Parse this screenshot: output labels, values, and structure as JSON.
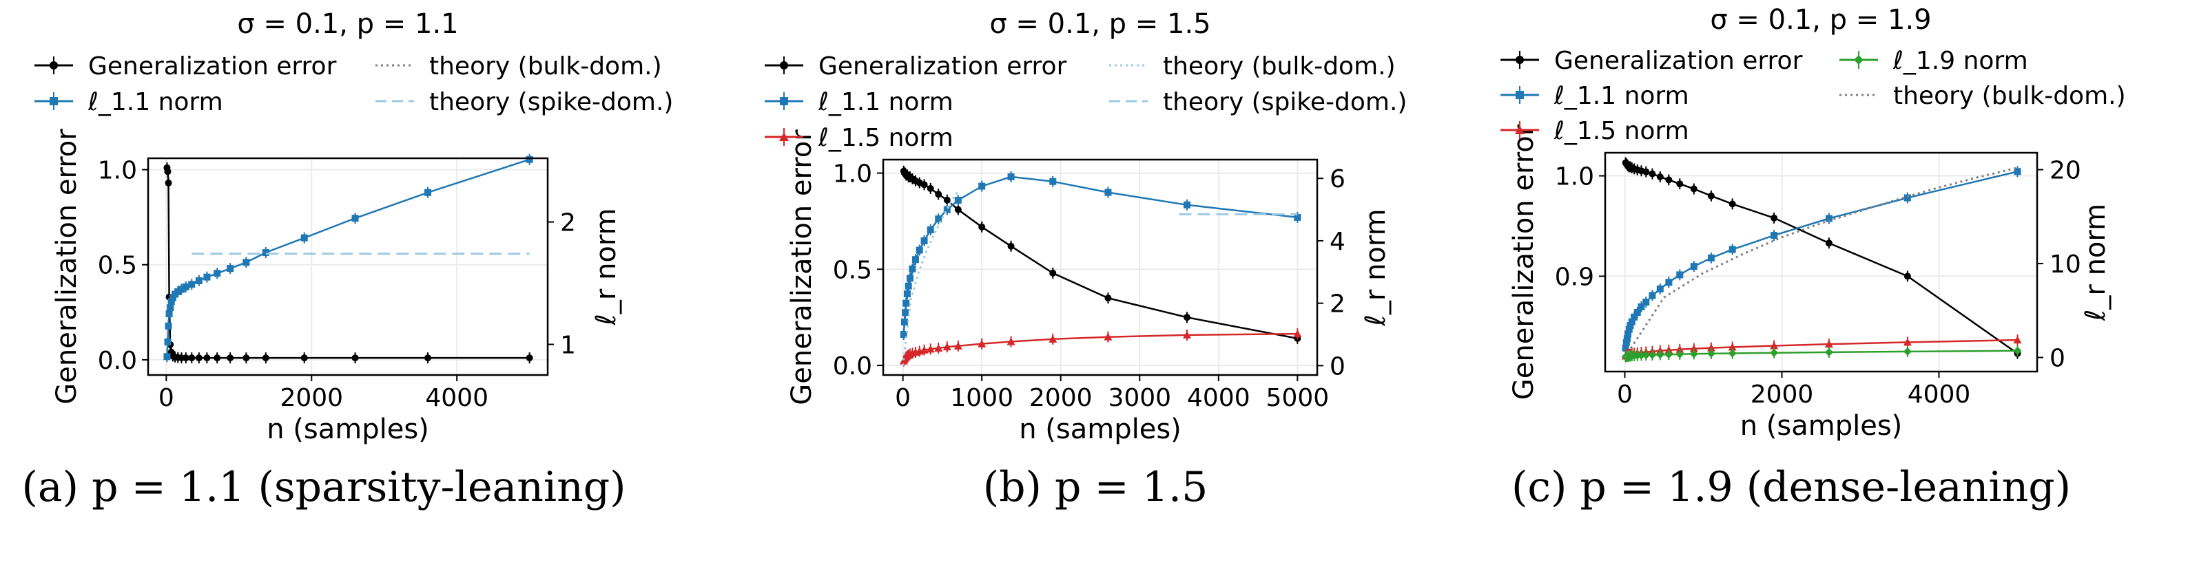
{
  "panels": [
    {
      "title": "σ = 0.1, p = 1.1",
      "caption": "(a) p = 1.1 (sparsity-leaning)",
      "xlabel": "n (samples)",
      "ylabel_left": "Generalization error",
      "ylabel_right": "ℓ_r norm",
      "xlim": [
        -250,
        5250
      ],
      "ylim_left": [
        -0.08,
        1.06
      ],
      "ylim_right": [
        0.75,
        2.52
      ],
      "xticks": [
        0,
        2000,
        4000
      ],
      "yticks_left": [
        0.0,
        0.5,
        1.0
      ],
      "yticks_right": [
        1,
        2
      ],
      "legend": [
        "Generalization error",
        "ℓ_1.1 norm",
        "theory (bulk-dom.)",
        "theory (spike-dom.)"
      ]
    },
    {
      "title": "σ = 0.1, p = 1.5",
      "caption": "(b) p = 1.5",
      "xlabel": "n (samples)",
      "ylabel_left": "Generalization error",
      "ylabel_right": "ℓ_r norm",
      "xlim": [
        -250,
        5250
      ],
      "ylim_left": [
        -0.05,
        1.07
      ],
      "ylim_right": [
        -0.3,
        6.6
      ],
      "xticks": [
        0,
        1000,
        2000,
        3000,
        4000,
        5000
      ],
      "yticks_left": [
        0.0,
        0.5,
        1.0
      ],
      "yticks_right": [
        0,
        2,
        4,
        6
      ],
      "legend": [
        "Generalization error",
        "ℓ_1.1 norm",
        "ℓ_1.5 norm",
        "theory (bulk-dom.)",
        "theory (spike-dom.)"
      ]
    },
    {
      "title": "σ = 0.1, p = 1.9",
      "caption": "(c) p = 1.9 (dense-leaning)",
      "xlabel": "n (samples)",
      "ylabel_left": "Generalization error",
      "ylabel_right": "ℓ_r norm",
      "xlim": [
        -250,
        5250
      ],
      "ylim_left": [
        0.805,
        1.023
      ],
      "ylim_right": [
        -1.5,
        21.8
      ],
      "xticks": [
        0,
        2000,
        4000
      ],
      "yticks_left": [
        0.9,
        1.0
      ],
      "yticks_right": [
        0,
        10,
        20
      ],
      "legend": [
        "Generalization error",
        "ℓ_1.1 norm",
        "ℓ_1.5 norm",
        "ℓ_1.9 norm",
        "theory (bulk-dom.)"
      ]
    }
  ],
  "chart_data": [
    {
      "type": "line",
      "title": "σ = 0.1, p = 1.1",
      "xlabel": "n (samples)",
      "ylabel": "Generalization error",
      "ylabel_right": "ℓ_r norm",
      "grid": true,
      "legend_position": "top",
      "series": [
        {
          "name": "Generalization error",
          "axis": "left",
          "color": "#000000",
          "marker": "circle",
          "x": [
            10,
            20,
            30,
            40,
            55,
            70,
            90,
            120,
            160,
            210,
            270,
            350,
            450,
            560,
            700,
            880,
            1100,
            1370,
            1900,
            2600,
            3600,
            5000
          ],
          "y": [
            1.01,
            0.99,
            0.93,
            0.33,
            0.08,
            0.04,
            0.02,
            0.015,
            0.012,
            0.01,
            0.01,
            0.01,
            0.01,
            0.01,
            0.01,
            0.01,
            0.01,
            0.01,
            0.01,
            0.01,
            0.01,
            0.01
          ]
        },
        {
          "name": "ℓ_1.1 norm",
          "axis": "right",
          "color": "#1f77b4",
          "marker": "square",
          "x": [
            10,
            20,
            30,
            40,
            55,
            70,
            90,
            120,
            160,
            210,
            270,
            350,
            450,
            560,
            700,
            880,
            1100,
            1370,
            1900,
            2600,
            3600,
            5000
          ],
          "y": [
            0.9,
            1.02,
            1.15,
            1.25,
            1.3,
            1.35,
            1.38,
            1.41,
            1.43,
            1.45,
            1.47,
            1.49,
            1.52,
            1.55,
            1.58,
            1.62,
            1.67,
            1.75,
            1.87,
            2.03,
            2.24,
            2.51
          ]
        },
        {
          "name": "theory (bulk-dom.)",
          "axis": "right",
          "color": "#808080",
          "style": "dotted",
          "x": [],
          "y": []
        },
        {
          "name": "theory (spike-dom.)",
          "axis": "right",
          "color": "#9ecae1",
          "style": "dashed",
          "x": [
            350,
            5000
          ],
          "y": [
            1.74,
            1.74
          ]
        }
      ]
    },
    {
      "type": "line",
      "title": "σ = 0.1, p = 1.5",
      "xlabel": "n (samples)",
      "ylabel": "Generalization error",
      "ylabel_right": "ℓ_r norm",
      "grid": true,
      "legend_position": "top",
      "series": [
        {
          "name": "Generalization error",
          "axis": "left",
          "color": "#000000",
          "marker": "circle",
          "x": [
            10,
            20,
            30,
            40,
            55,
            70,
            90,
            120,
            160,
            210,
            270,
            350,
            450,
            560,
            700,
            1000,
            1370,
            1900,
            2600,
            3600,
            5000
          ],
          "y": [
            1.01,
            1.0,
            1.0,
            0.99,
            0.99,
            0.98,
            0.98,
            0.97,
            0.96,
            0.95,
            0.94,
            0.92,
            0.89,
            0.86,
            0.81,
            0.72,
            0.62,
            0.48,
            0.35,
            0.25,
            0.14
          ]
        },
        {
          "name": "ℓ_1.1 norm",
          "axis": "right",
          "color": "#1f77b4",
          "marker": "square",
          "x": [
            10,
            20,
            30,
            40,
            55,
            70,
            90,
            120,
            160,
            210,
            270,
            350,
            450,
            560,
            700,
            1000,
            1370,
            1900,
            2600,
            3600,
            5000
          ],
          "y": [
            1.0,
            1.4,
            1.7,
            2.0,
            2.3,
            2.55,
            2.8,
            3.1,
            3.4,
            3.7,
            4.0,
            4.35,
            4.7,
            5.0,
            5.3,
            5.75,
            6.05,
            5.9,
            5.55,
            5.15,
            4.75
          ]
        },
        {
          "name": "ℓ_1.5 norm",
          "axis": "right",
          "color": "#d62728",
          "marker": "triangle",
          "x": [
            10,
            20,
            30,
            40,
            55,
            70,
            90,
            120,
            160,
            210,
            270,
            350,
            450,
            560,
            700,
            1000,
            1370,
            1900,
            2600,
            3600,
            5000
          ],
          "y": [
            0.15,
            0.2,
            0.24,
            0.28,
            0.31,
            0.34,
            0.37,
            0.4,
            0.43,
            0.46,
            0.5,
            0.53,
            0.56,
            0.6,
            0.63,
            0.7,
            0.77,
            0.85,
            0.92,
            0.98,
            1.02
          ]
        },
        {
          "name": "theory (bulk-dom.)",
          "axis": "right",
          "color": "#9ecae1",
          "style": "dotted",
          "x": [
            0,
            100,
            200,
            300,
            400,
            500,
            600,
            700
          ],
          "y": [
            0.0,
            2.12,
            3.0,
            3.67,
            4.24,
            4.74,
            5.2,
            5.61
          ]
        },
        {
          "name": "theory (spike-dom.)",
          "axis": "right",
          "color": "#9ecae1",
          "style": "dashed",
          "x": [
            3500,
            5000
          ],
          "y": [
            4.85,
            4.85
          ]
        }
      ]
    },
    {
      "type": "line",
      "title": "σ = 0.1, p = 1.9",
      "xlabel": "n (samples)",
      "ylabel": "Generalization error",
      "ylabel_right": "ℓ_r norm",
      "grid": true,
      "legend_position": "top",
      "series": [
        {
          "name": "Generalization error",
          "axis": "left",
          "color": "#000000",
          "marker": "circle",
          "x": [
            10,
            20,
            30,
            40,
            55,
            70,
            90,
            120,
            160,
            210,
            270,
            350,
            450,
            560,
            700,
            880,
            1100,
            1370,
            1900,
            2600,
            3600,
            5000
          ],
          "y": [
            1.013,
            1.012,
            1.011,
            1.01,
            1.009,
            1.009,
            1.008,
            1.007,
            1.006,
            1.005,
            1.004,
            1.002,
            0.999,
            0.996,
            0.992,
            0.987,
            0.98,
            0.972,
            0.958,
            0.933,
            0.9,
            0.823
          ]
        },
        {
          "name": "ℓ_1.1 norm",
          "axis": "right",
          "color": "#1f77b4",
          "marker": "square",
          "x": [
            10,
            20,
            30,
            40,
            55,
            70,
            90,
            120,
            160,
            210,
            270,
            350,
            450,
            560,
            700,
            880,
            1100,
            1370,
            1900,
            2600,
            3600,
            5000
          ],
          "y": [
            1.0,
            1.6,
            2.0,
            2.5,
            3.0,
            3.4,
            3.8,
            4.3,
            4.8,
            5.4,
            5.9,
            6.6,
            7.3,
            8.0,
            8.8,
            9.7,
            10.6,
            11.5,
            13.0,
            14.8,
            17.0,
            19.8
          ]
        },
        {
          "name": "ℓ_1.5 norm",
          "axis": "right",
          "color": "#d62728",
          "marker": "triangle",
          "x": [
            10,
            20,
            30,
            40,
            55,
            70,
            90,
            120,
            160,
            210,
            270,
            350,
            450,
            560,
            700,
            880,
            1100,
            1370,
            1900,
            2600,
            3600,
            5000
          ],
          "y": [
            0.15,
            0.2,
            0.24,
            0.28,
            0.32,
            0.36,
            0.4,
            0.44,
            0.49,
            0.54,
            0.59,
            0.65,
            0.72,
            0.78,
            0.86,
            0.94,
            1.02,
            1.1,
            1.25,
            1.42,
            1.62,
            1.86
          ]
        },
        {
          "name": "ℓ_1.9 norm",
          "axis": "right",
          "color": "#2ca02c",
          "marker": "diamond",
          "x": [
            10,
            20,
            30,
            40,
            55,
            70,
            90,
            120,
            160,
            210,
            270,
            350,
            450,
            560,
            700,
            880,
            1100,
            1370,
            1900,
            2600,
            3600,
            5000
          ],
          "y": [
            0.08,
            0.1,
            0.12,
            0.13,
            0.15,
            0.16,
            0.18,
            0.19,
            0.21,
            0.23,
            0.25,
            0.27,
            0.3,
            0.32,
            0.35,
            0.38,
            0.41,
            0.44,
            0.5,
            0.56,
            0.63,
            0.72
          ]
        },
        {
          "name": "theory (bulk-dom.)",
          "axis": "right",
          "color": "#808080",
          "style": "dotted",
          "x": [
            0,
            500,
            1000,
            1500,
            2000,
            2500,
            3000,
            3500,
            4000,
            4500,
            5000
          ],
          "y": [
            0.0,
            6.4,
            9.0,
            11.0,
            12.8,
            14.3,
            15.6,
            16.9,
            18.1,
            19.2,
            20.2
          ]
        }
      ]
    }
  ]
}
